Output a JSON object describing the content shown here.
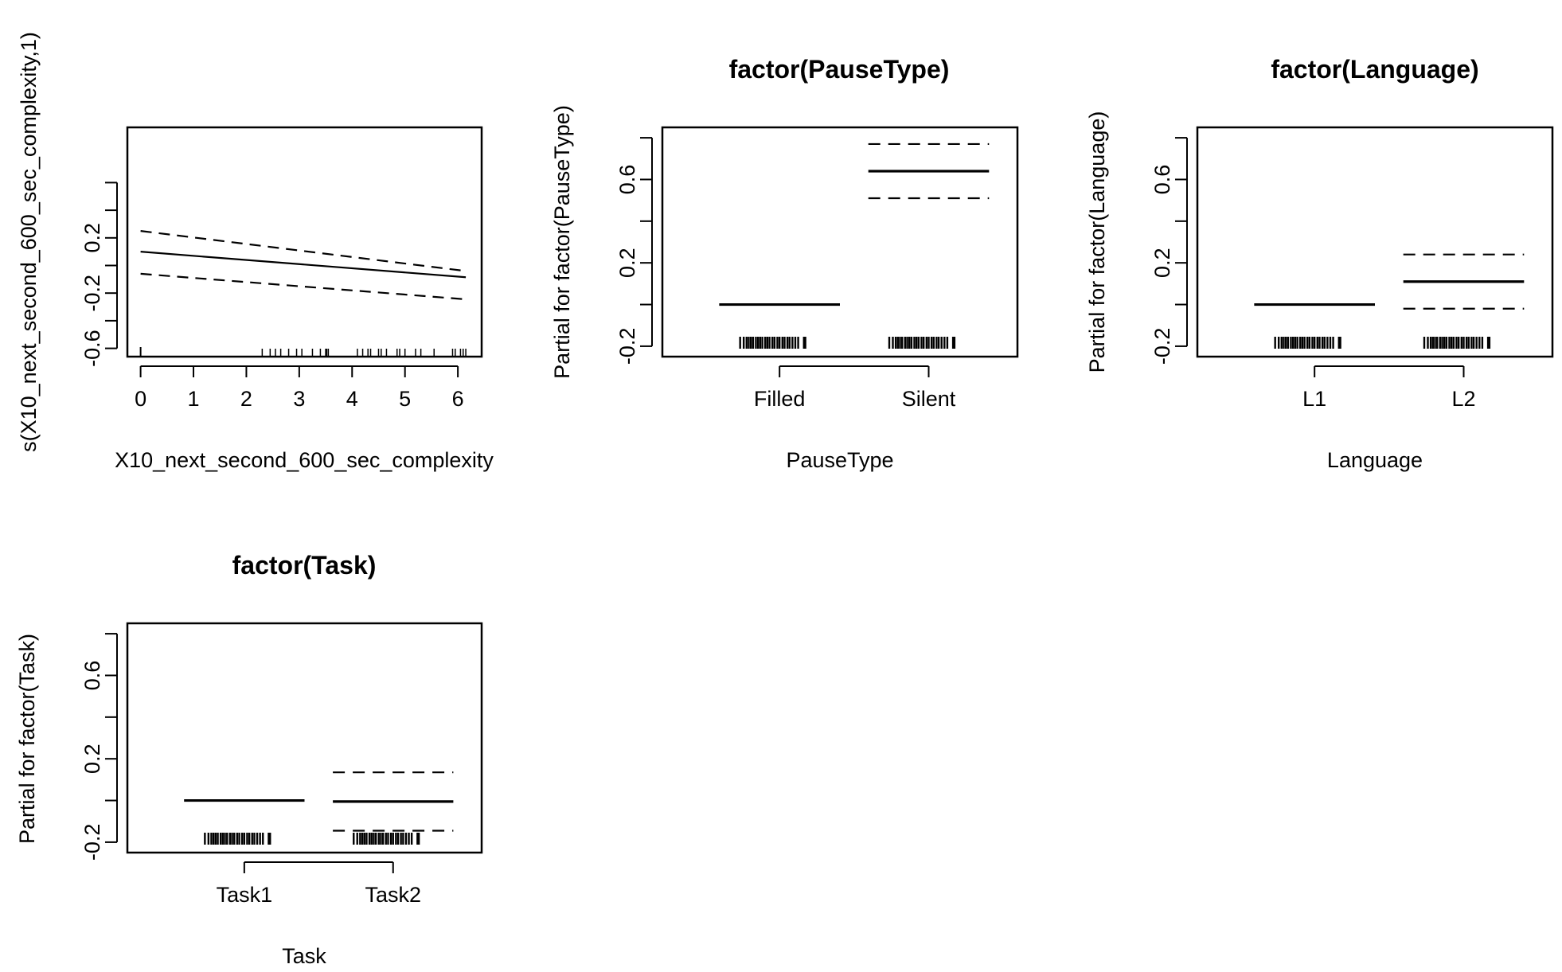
{
  "chart_data": [
    {
      "id": "smooth",
      "type": "line",
      "title": "",
      "xlabel": "X10_next_second_600_sec_complexity",
      "ylabel": "s(X10_next_second_600_sec_complexity,1)",
      "xlim": [
        -0.25,
        6.45
      ],
      "ylim": [
        -0.66,
        1.0
      ],
      "xticks": [
        0,
        1,
        2,
        3,
        4,
        5,
        6
      ],
      "yticks": [
        -0.6,
        -0.4,
        -0.2,
        0.0,
        0.2,
        0.4,
        0.6
      ],
      "yticklabels": [
        "-0.6",
        "",
        "-0.2",
        "",
        "0.2",
        "",
        ""
      ],
      "series": [
        {
          "role": "fit",
          "style": "solid",
          "x": [
            0,
            6.15
          ],
          "y": [
            0.1,
            -0.085
          ]
        },
        {
          "role": "upper",
          "style": "dashed",
          "x": [
            0,
            6.15
          ],
          "y": [
            0.25,
            -0.04
          ]
        },
        {
          "role": "lower",
          "style": "dashed",
          "x": [
            0,
            6.15
          ],
          "y": [
            -0.06,
            -0.245
          ]
        }
      ],
      "rug": [
        2.3,
        2.45,
        2.55,
        2.65,
        2.8,
        2.95,
        3.05,
        3.25,
        3.4,
        3.5,
        3.52,
        3.55,
        4.1,
        4.2,
        4.3,
        4.35,
        4.5,
        4.55,
        4.65,
        4.85,
        4.9,
        5.0,
        5.2,
        5.3,
        5.55,
        5.9,
        5.95,
        6.05,
        6.1,
        6.15
      ]
    },
    {
      "id": "pausetype",
      "type": "bar",
      "title": "factor(PauseType)",
      "xlabel": "PauseType",
      "ylabel": "Partial for factor(PauseType)",
      "categories": [
        "Filled",
        "Silent"
      ],
      "ylim": [
        -0.25,
        0.85
      ],
      "yticks": [
        -0.2,
        0.0,
        0.2,
        0.4,
        0.6,
        0.8
      ],
      "yticklabels": [
        "-0.2",
        "",
        "0.2",
        "",
        "0.6",
        ""
      ],
      "fit": [
        0.0,
        0.64
      ],
      "upper": [
        null,
        0.77
      ],
      "lower": [
        null,
        0.51
      ]
    },
    {
      "id": "language",
      "type": "bar",
      "title": "factor(Language)",
      "xlabel": "Language",
      "ylabel": "Partial for factor(Language)",
      "categories": [
        "L1",
        "L2"
      ],
      "ylim": [
        -0.25,
        0.85
      ],
      "yticks": [
        -0.2,
        0.0,
        0.2,
        0.4,
        0.6,
        0.8
      ],
      "yticklabels": [
        "-0.2",
        "",
        "0.2",
        "",
        "0.6",
        ""
      ],
      "fit": [
        0.0,
        0.11
      ],
      "upper": [
        null,
        0.24
      ],
      "lower": [
        null,
        -0.02
      ]
    },
    {
      "id": "task",
      "type": "bar",
      "title": "factor(Task)",
      "xlabel": "Task",
      "ylabel": "Partial for factor(Task)",
      "categories": [
        "Task1",
        "Task2"
      ],
      "ylim": [
        -0.25,
        0.85
      ],
      "yticks": [
        -0.2,
        0.0,
        0.2,
        0.4,
        0.6,
        0.8
      ],
      "yticklabels": [
        "-0.2",
        "",
        "0.2",
        "",
        "0.6",
        ""
      ],
      "fit": [
        0.0,
        -0.005
      ],
      "upper": [
        null,
        0.135
      ],
      "lower": [
        null,
        -0.145
      ]
    }
  ]
}
